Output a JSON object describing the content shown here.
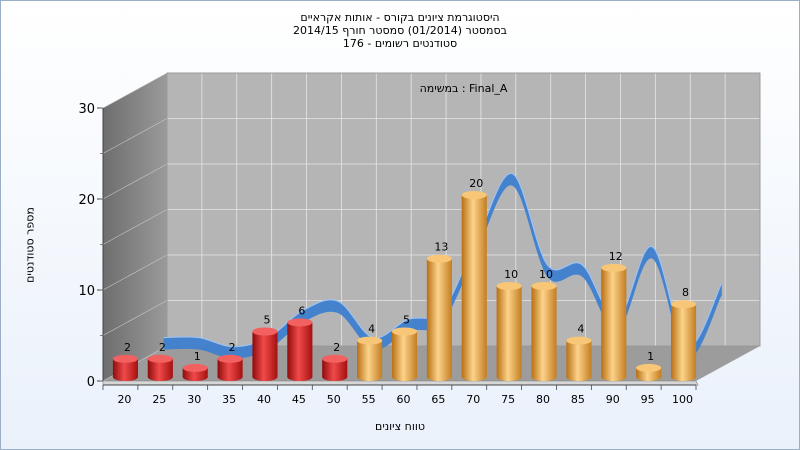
{
  "title_lines": [
    "היסטוגרמת ציונים בקורס - אותות אקראיים",
    "בסמסטר  (01/2014)  סמסטר חורף 2014/15",
    "סטודנטים רשומים - 176"
  ],
  "chart_data": {
    "type": "bar",
    "annotation": "במשימה : Final_A",
    "xlabel": "טווח ציונים",
    "ylabel": "מספר סטודנטים",
    "ylim": [
      0,
      30
    ],
    "yticks": [
      0,
      10,
      20,
      30
    ],
    "categories": [
      "20",
      "25",
      "30",
      "35",
      "40",
      "45",
      "50",
      "55",
      "60",
      "65",
      "70",
      "75",
      "80",
      "85",
      "90",
      "95",
      "100"
    ],
    "values": [
      2,
      2,
      1,
      2,
      5,
      6,
      2,
      4,
      5,
      13,
      20,
      10,
      10,
      4,
      12,
      1,
      8
    ],
    "bar_colors": {
      "fail": "#d81b1b",
      "pass": "#e8a546"
    },
    "pass_threshold": 55,
    "ribbon_color": "#3f7fd0",
    "grid": true
  }
}
